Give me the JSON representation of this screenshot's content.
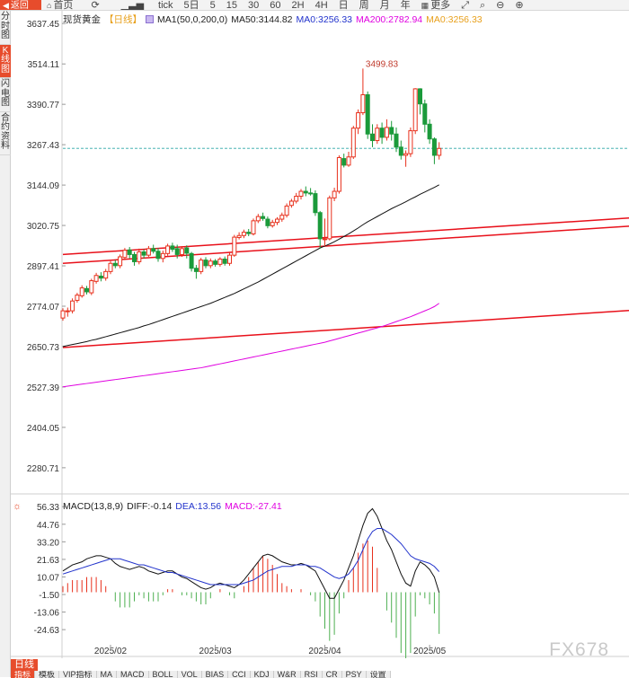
{
  "toolbar": {
    "back_label": "返回",
    "home_label": "首页",
    "items": [
      "tick",
      "5日",
      "5",
      "15",
      "30",
      "60",
      "2H",
      "4H",
      "日",
      "周",
      "月",
      "年"
    ],
    "more_label": "更多"
  },
  "side_tabs": [
    "分时图",
    "K线图",
    "闪电图",
    "合约资料"
  ],
  "legend": {
    "symbol": "现货黄金",
    "period": "【日线】",
    "ma1": "MA1(50,0,200,0)",
    "ma50": "MA50:3144.82",
    "ma0": "MA0:3256.33",
    "ma200": "MA200:2782.94",
    "ma0b": "MA0:3256.33"
  },
  "macd_legend": {
    "name": "MACD(13,8,9)",
    "diff": "DIFF:-0.14",
    "dea": "DEA:13.56",
    "macd": "MACD:-27.41"
  },
  "bottom": {
    "period_tag": "日线",
    "indicator_tabs": [
      "指标",
      "模板",
      "VIP指标",
      "MA",
      "MACD",
      "BOLL",
      "VOL",
      "BIAS",
      "CCI",
      "KDJ",
      "W&R",
      "RSI",
      "CR",
      "PSY",
      "设置"
    ]
  },
  "watermark": "FX678",
  "colors": {
    "up": "#e8301c",
    "down": "#1a9a3a",
    "ma50": "#111111",
    "ma200": "#e000e0",
    "channel": "#e8101a",
    "dea": "#2233cc",
    "accent": "#e74c2c"
  },
  "chart_data": [
    {
      "type": "candlestick",
      "ylim": [
        2220,
        3660
      ],
      "y_ticks": [
        "3637.45",
        "3514.11",
        "3390.77",
        "3267.43",
        "3144.09",
        "3020.75",
        "2897.41",
        "2774.07",
        "2650.73",
        "2527.39",
        "2404.05",
        "2280.71"
      ],
      "x_labels": [
        "2025/02",
        "2025/03",
        "2025/04",
        "2025/05"
      ],
      "last_close": 3256.33,
      "high_annotation": "3499.83",
      "candles": [
        [
          2738,
          2760,
          2730,
          2768
        ],
        [
          2758,
          2760,
          2742,
          2770
        ],
        [
          2760,
          2790,
          2752,
          2798
        ],
        [
          2792,
          2808,
          2785,
          2815
        ],
        [
          2806,
          2830,
          2800,
          2838
        ],
        [
          2828,
          2818,
          2810,
          2836
        ],
        [
          2815,
          2852,
          2808,
          2858
        ],
        [
          2850,
          2868,
          2843,
          2876
        ],
        [
          2866,
          2860,
          2850,
          2878
        ],
        [
          2860,
          2880,
          2852,
          2888
        ],
        [
          2880,
          2905,
          2872,
          2912
        ],
        [
          2905,
          2898,
          2890,
          2915
        ],
        [
          2898,
          2925,
          2890,
          2932
        ],
        [
          2923,
          2945,
          2915,
          2952
        ],
        [
          2946,
          2932,
          2920,
          2955
        ],
        [
          2932,
          2910,
          2898,
          2940
        ],
        [
          2910,
          2940,
          2902,
          2950
        ],
        [
          2940,
          2930,
          2920,
          2948
        ],
        [
          2930,
          2950,
          2925,
          2958
        ],
        [
          2950,
          2942,
          2935,
          2962
        ],
        [
          2942,
          2920,
          2910,
          2952
        ],
        [
          2920,
          2935,
          2908,
          2944
        ],
        [
          2935,
          2958,
          2928,
          2965
        ],
        [
          2958,
          2948,
          2940,
          2968
        ],
        [
          2950,
          2932,
          2920,
          2962
        ],
        [
          2932,
          2950,
          2925,
          2958
        ],
        [
          2952,
          2936,
          2920,
          2960
        ],
        [
          2935,
          2890,
          2880,
          2940
        ],
        [
          2890,
          2880,
          2858,
          2900
        ],
        [
          2880,
          2915,
          2872,
          2922
        ],
        [
          2915,
          2898,
          2890,
          2924
        ],
        [
          2898,
          2912,
          2890,
          2920
        ],
        [
          2912,
          2902,
          2895,
          2918
        ],
        [
          2902,
          2918,
          2895,
          2924
        ],
        [
          2918,
          2905,
          2898,
          2926
        ],
        [
          2905,
          2930,
          2898,
          2938
        ],
        [
          2930,
          2985,
          2925,
          2992
        ],
        [
          2984,
          2990,
          2978,
          3000
        ],
        [
          2990,
          3000,
          2982,
          3008
        ],
        [
          3000,
          2996,
          2988,
          3010
        ],
        [
          2995,
          3035,
          2990,
          3042
        ],
        [
          3035,
          3048,
          3028,
          3056
        ],
        [
          3048,
          3042,
          3035,
          3060
        ],
        [
          3040,
          3020,
          3012,
          3048
        ],
        [
          3020,
          3030,
          3014,
          3038
        ],
        [
          3030,
          3040,
          3022,
          3046
        ],
        [
          3040,
          3052,
          3032,
          3060
        ],
        [
          3052,
          3080,
          3045,
          3088
        ],
        [
          3082,
          3095,
          3075,
          3102
        ],
        [
          3095,
          3110,
          3088,
          3120
        ],
        [
          3110,
          3125,
          3100,
          3132
        ],
        [
          3125,
          3120,
          3110,
          3140
        ],
        [
          3120,
          3118,
          3112,
          3135
        ],
        [
          3118,
          3060,
          3050,
          3128
        ],
        [
          3060,
          2980,
          2950,
          3065
        ],
        [
          2980,
          2980,
          2958,
          3042
        ],
        [
          2980,
          3105,
          2975,
          3112
        ],
        [
          3105,
          3125,
          3095,
          3136
        ],
        [
          3125,
          3228,
          3118,
          3235
        ],
        [
          3225,
          3205,
          3198,
          3240
        ],
        [
          3205,
          3230,
          3200,
          3246
        ],
        [
          3230,
          3318,
          3224,
          3325
        ],
        [
          3318,
          3365,
          3300,
          3375
        ],
        [
          3365,
          3420,
          3358,
          3500
        ],
        [
          3420,
          3300,
          3285,
          3430
        ],
        [
          3300,
          3280,
          3260,
          3330
        ],
        [
          3280,
          3318,
          3270,
          3330
        ],
        [
          3318,
          3290,
          3270,
          3335
        ],
        [
          3290,
          3320,
          3280,
          3345
        ],
        [
          3320,
          3300,
          3280,
          3340
        ],
        [
          3300,
          3260,
          3245,
          3320
        ],
        [
          3260,
          3235,
          3222,
          3280
        ],
        [
          3235,
          3240,
          3200,
          3250
        ],
        [
          3240,
          3310,
          3230,
          3320
        ],
        [
          3310,
          3438,
          3300,
          3440
        ],
        [
          3438,
          3392,
          3360,
          3440
        ],
        [
          3392,
          3330,
          3305,
          3405
        ],
        [
          3330,
          3285,
          3270,
          3345
        ],
        [
          3285,
          3235,
          3208,
          3290
        ],
        [
          3235,
          3256,
          3222,
          3275
        ]
      ],
      "ma50": [
        2651,
        2654,
        2657,
        2660,
        2663,
        2666,
        2670,
        2673,
        2677,
        2681,
        2685,
        2689,
        2693,
        2697,
        2701,
        2705,
        2709,
        2714,
        2718,
        2723,
        2728,
        2733,
        2738,
        2743,
        2748,
        2753,
        2758,
        2763,
        2768,
        2773,
        2778,
        2783,
        2789,
        2795,
        2801,
        2807,
        2813,
        2820,
        2827,
        2834,
        2841,
        2848,
        2856,
        2864,
        2872,
        2880,
        2888,
        2896,
        2904,
        2912,
        2920,
        2928,
        2936,
        2944,
        2952,
        2958,
        2964,
        2971,
        2979,
        2987,
        2995,
        3004,
        3013,
        3023,
        3032,
        3040,
        3048,
        3056,
        3064,
        3072,
        3079,
        3086,
        3093,
        3101,
        3108,
        3116,
        3123,
        3130,
        3137,
        3144.82
      ],
      "ma200": [
        2528,
        2530,
        2532,
        2534,
        2536,
        2538,
        2540,
        2542,
        2544,
        2546,
        2548,
        2550,
        2552,
        2554,
        2556,
        2558,
        2560,
        2562,
        2564,
        2566,
        2568,
        2570,
        2572,
        2574,
        2576,
        2578,
        2580,
        2582,
        2584,
        2586,
        2589,
        2592,
        2595,
        2598,
        2601,
        2604,
        2607,
        2610,
        2613,
        2616,
        2619,
        2622,
        2625,
        2628,
        2631,
        2634,
        2637,
        2640,
        2643,
        2646,
        2649,
        2652,
        2655,
        2658,
        2661,
        2664,
        2668,
        2672,
        2676,
        2680,
        2684,
        2688,
        2692,
        2696,
        2700,
        2704,
        2708,
        2712,
        2717,
        2722,
        2727,
        2732,
        2737,
        2742,
        2748,
        2754,
        2760,
        2766,
        2773,
        2782.94
      ],
      "channel_lines": [
        [
          [
            0,
            2932
          ],
          [
            160,
            3082
          ]
        ],
        [
          [
            0,
            2905
          ],
          [
            160,
            3058
          ]
        ],
        [
          [
            0,
            2648
          ],
          [
            160,
            2800
          ]
        ]
      ],
      "channel_lines_note": "trendline endpoints as [candle index, price]"
    },
    {
      "type": "macd",
      "ylim": [
        -34,
        60
      ],
      "y_ticks": [
        "56.33",
        "44.76",
        "33.20",
        "21.63",
        "10.07",
        "-1.50",
        "-13.06",
        "-24.63"
      ],
      "diff": [
        14,
        16,
        18,
        19,
        20,
        22,
        23,
        24,
        24,
        23,
        22,
        19,
        17,
        16,
        15,
        16,
        17,
        16,
        14,
        13,
        12,
        13,
        14,
        14,
        12,
        10,
        9,
        7,
        5,
        3,
        2,
        3,
        5,
        6,
        5,
        4,
        3,
        5,
        8,
        12,
        16,
        20,
        24,
        25,
        24,
        22,
        20,
        19,
        18,
        18,
        19,
        18,
        16,
        14,
        8,
        2,
        -4,
        -4,
        2,
        8,
        16,
        24,
        34,
        44,
        52,
        55,
        50,
        42,
        34,
        28,
        20,
        12,
        6,
        4,
        14,
        20,
        18,
        15,
        10,
        -0.14
      ],
      "dea": [
        12,
        13,
        14,
        15,
        16,
        17,
        18,
        19,
        20,
        21,
        22,
        22,
        22,
        21,
        20,
        19,
        18,
        18,
        17,
        16,
        15,
        14,
        13,
        13,
        12,
        11,
        10,
        9,
        8,
        7,
        6,
        5,
        5,
        5,
        5,
        5,
        5,
        5,
        6,
        7,
        8,
        10,
        12,
        14,
        15,
        16,
        17,
        17,
        17,
        18,
        18,
        18,
        17,
        17,
        16,
        14,
        12,
        10,
        9,
        10,
        12,
        16,
        21,
        28,
        35,
        40,
        42,
        42,
        40,
        38,
        35,
        32,
        28,
        24,
        22,
        21,
        20,
        19,
        17,
        13.56
      ],
      "macd_hist": [
        4,
        6,
        8,
        8,
        8,
        10,
        10,
        10,
        8,
        4,
        0,
        -6,
        -10,
        -10,
        -10,
        -6,
        -2,
        -4,
        -6,
        -6,
        -6,
        -2,
        2,
        2,
        0,
        -2,
        -2,
        -4,
        -6,
        -8,
        -8,
        -4,
        0,
        2,
        0,
        -2,
        -4,
        0,
        4,
        10,
        16,
        20,
        24,
        22,
        18,
        12,
        6,
        4,
        2,
        0,
        2,
        0,
        -2,
        -6,
        -16,
        -24,
        -32,
        -28,
        -14,
        -4,
        8,
        16,
        26,
        32,
        34,
        30,
        16,
        0,
        -12,
        -20,
        -30,
        -40,
        -44,
        -40,
        -16,
        -2,
        -4,
        -8,
        -14,
        -27.41
      ]
    }
  ]
}
